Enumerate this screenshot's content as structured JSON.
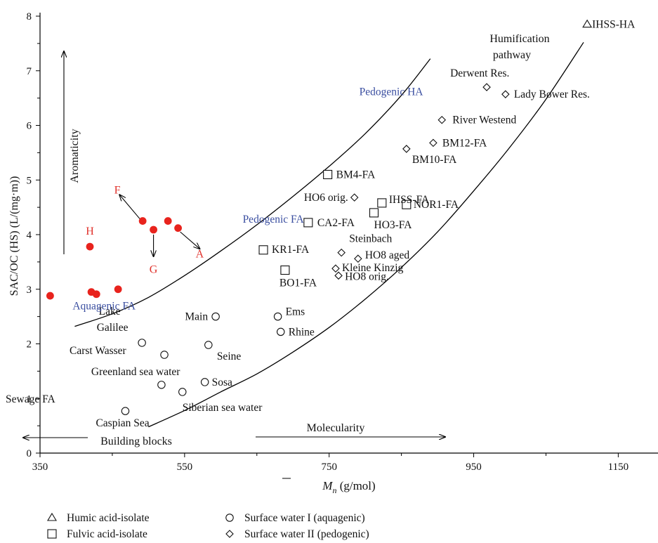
{
  "chart_data": {
    "type": "scatter",
    "xlabel_prefix": "M",
    "xlabel_sub": "n",
    "xlabel_suffix": " (g/mol)",
    "ylabel": "SAC/OC (HS) (L/(mg·m))",
    "xlim": [
      350,
      1205
    ],
    "ylim": [
      0,
      8
    ],
    "x_ticks": [
      350,
      550,
      750,
      950,
      1150
    ],
    "y_ticks": [
      0,
      1,
      2,
      3,
      4,
      5,
      6,
      7,
      8
    ],
    "series": [
      {
        "name": "Humic acid-isolate",
        "marker": "triangle",
        "points": [
          {
            "label": "IHSS-HA",
            "x": 1107,
            "y": 7.85
          }
        ]
      },
      {
        "name": "Fulvic acid-isolate",
        "marker": "square",
        "points": [
          {
            "label": "BM4-FA",
            "x": 748,
            "y": 5.1
          },
          {
            "label": "IHSS-FA",
            "x": 823,
            "y": 4.58
          },
          {
            "label": "NOR1-FA",
            "x": 857,
            "y": 4.55
          },
          {
            "label": "HO3-FA",
            "x": 812,
            "y": 4.4
          },
          {
            "label": "CA2-FA",
            "x": 721,
            "y": 4.22
          },
          {
            "label": "KR1-FA",
            "x": 659,
            "y": 3.72
          },
          {
            "label": "BO1-FA",
            "x": 689,
            "y": 3.35
          }
        ]
      },
      {
        "name": "Surface water I (aquagenic)",
        "marker": "circle",
        "points": [
          {
            "label": "Main",
            "x": 593,
            "y": 2.5
          },
          {
            "label": "Ems",
            "x": 679,
            "y": 2.5
          },
          {
            "label": "Rhine",
            "x": 683,
            "y": 2.22
          },
          {
            "label": "Lake Galilee",
            "x": 491,
            "y": 2.02
          },
          {
            "label": "Seine",
            "x": 583,
            "y": 1.98
          },
          {
            "label": "Carst Wasser",
            "x": 522,
            "y": 1.8
          },
          {
            "label": "Greenland sea water",
            "x": 518,
            "y": 1.25
          },
          {
            "label": "Sosa",
            "x": 578,
            "y": 1.3
          },
          {
            "label": "Siberian sea water",
            "x": 547,
            "y": 1.12
          },
          {
            "label": "Caspian Sea",
            "x": 468,
            "y": 0.77
          }
        ]
      },
      {
        "name": "Surface water II (pedogenic)",
        "marker": "diamond",
        "points": [
          {
            "label": "Derwent Res.",
            "x": 968,
            "y": 6.7
          },
          {
            "label": "Lady Bower Res.",
            "x": 994,
            "y": 6.57
          },
          {
            "label": "River Westend",
            "x": 906,
            "y": 6.1
          },
          {
            "label": "BM12-FA",
            "x": 894,
            "y": 5.68
          },
          {
            "label": "BM10-FA",
            "x": 857,
            "y": 5.57
          },
          {
            "label": "HO6 orig.",
            "x": 785,
            "y": 4.68
          },
          {
            "label": "Steinbach",
            "x": 767,
            "y": 3.67
          },
          {
            "label": "HO8 aged",
            "x": 790,
            "y": 3.56
          },
          {
            "label": "Kleine Kinzig",
            "x": 759,
            "y": 3.38
          },
          {
            "label": "HO8 orig.",
            "x": 763,
            "y": 3.25
          }
        ]
      },
      {
        "name": "Aquagenic FA fractions",
        "marker": "filled-circle",
        "points": [
          {
            "x": 364,
            "y": 2.88
          },
          {
            "x": 421,
            "y": 2.95
          },
          {
            "x": 428,
            "y": 2.91
          },
          {
            "x": 458,
            "y": 3.0
          },
          {
            "x": 419,
            "y": 3.78
          },
          {
            "x": 492,
            "y": 4.25
          },
          {
            "x": 507,
            "y": 4.09
          },
          {
            "x": 527,
            "y": 4.25
          },
          {
            "x": 541,
            "y": 4.12
          }
        ]
      }
    ],
    "curves": [
      {
        "points": [
          [
            398,
            2.32
          ],
          [
            450,
            2.55
          ],
          [
            500,
            2.85
          ],
          [
            550,
            3.25
          ],
          [
            600,
            3.7
          ],
          [
            650,
            4.18
          ],
          [
            700,
            4.7
          ],
          [
            750,
            5.25
          ],
          [
            800,
            5.85
          ],
          [
            850,
            6.55
          ],
          [
            890,
            7.22
          ]
        ]
      },
      {
        "points": [
          [
            500,
            0.48
          ],
          [
            550,
            0.78
          ],
          [
            600,
            1.12
          ],
          [
            650,
            1.45
          ],
          [
            700,
            1.85
          ],
          [
            750,
            2.3
          ],
          [
            800,
            2.82
          ],
          [
            850,
            3.4
          ],
          [
            900,
            4.05
          ],
          [
            950,
            4.8
          ],
          [
            1000,
            5.6
          ],
          [
            1050,
            6.48
          ],
          [
            1102,
            7.52
          ]
        ]
      }
    ],
    "fraction_letters": [
      {
        "text": "F",
        "x": 457,
        "y": 4.75
      },
      {
        "text": "H",
        "x": 419,
        "y": 4.0
      },
      {
        "text": "G",
        "x": 507,
        "y": 3.3
      },
      {
        "text": "A",
        "x": 571,
        "y": 3.58
      }
    ],
    "region_labels": [
      {
        "text": "Pedogenic HA",
        "x": 880,
        "y": 6.55,
        "anchor": "end"
      },
      {
        "text": "Pedogenic FA",
        "x": 715,
        "y": 4.22,
        "anchor": "end"
      },
      {
        "text": "Aquagenic FA",
        "x": 395,
        "y": 2.63,
        "anchor": "start"
      }
    ],
    "legend": [
      {
        "marker": "triangle",
        "text": "Humic acid-isolate"
      },
      {
        "marker": "square",
        "text": "Fulvic acid-isolate"
      },
      {
        "marker": "circle",
        "text": "Surface water I (aquagenic)"
      },
      {
        "marker": "diamond",
        "text": "Surface water II (pedogenic)"
      }
    ]
  },
  "annotations": {
    "humification_line1": "Humification",
    "humification_line2": "pathway",
    "aromaticity": "Aromaticity",
    "molecularity": "Molecularity",
    "building_blocks": "Building blocks",
    "sewage_fa": "Sewage FA"
  }
}
